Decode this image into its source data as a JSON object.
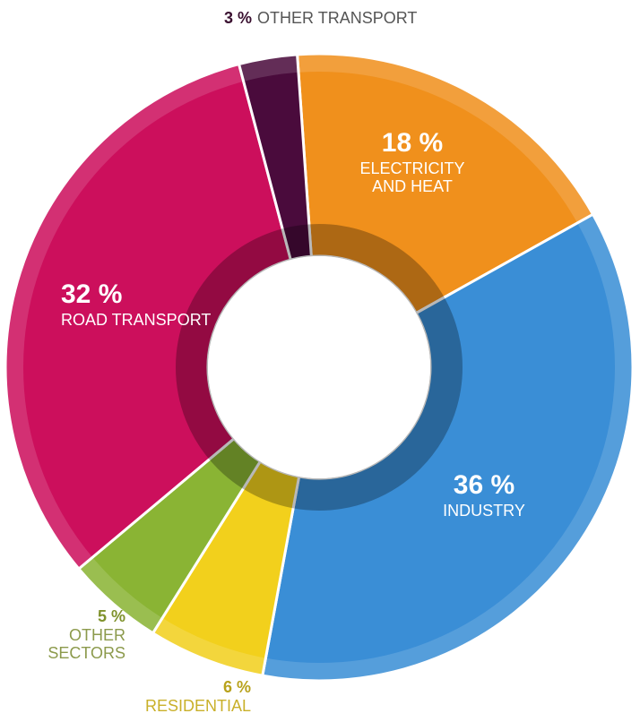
{
  "chart_data": {
    "type": "pie",
    "donut": true,
    "categories": [
      "ELECTRICITY AND HEAT",
      "INDUSTRY",
      "RESIDENTIAL",
      "OTHER SECTORS",
      "ROAD TRANSPORT",
      "OTHER TRANSPORT"
    ],
    "values": [
      18,
      36,
      6,
      5,
      32,
      3
    ],
    "value_labels": [
      "18 %",
      "36 %",
      "6 %",
      "5 %",
      "32 %",
      "3 %"
    ],
    "colors": [
      "#f0901c",
      "#3a8ed6",
      "#f2d01c",
      "#8ab434",
      "#cc0f5c",
      "#4a0b3c"
    ]
  }
}
